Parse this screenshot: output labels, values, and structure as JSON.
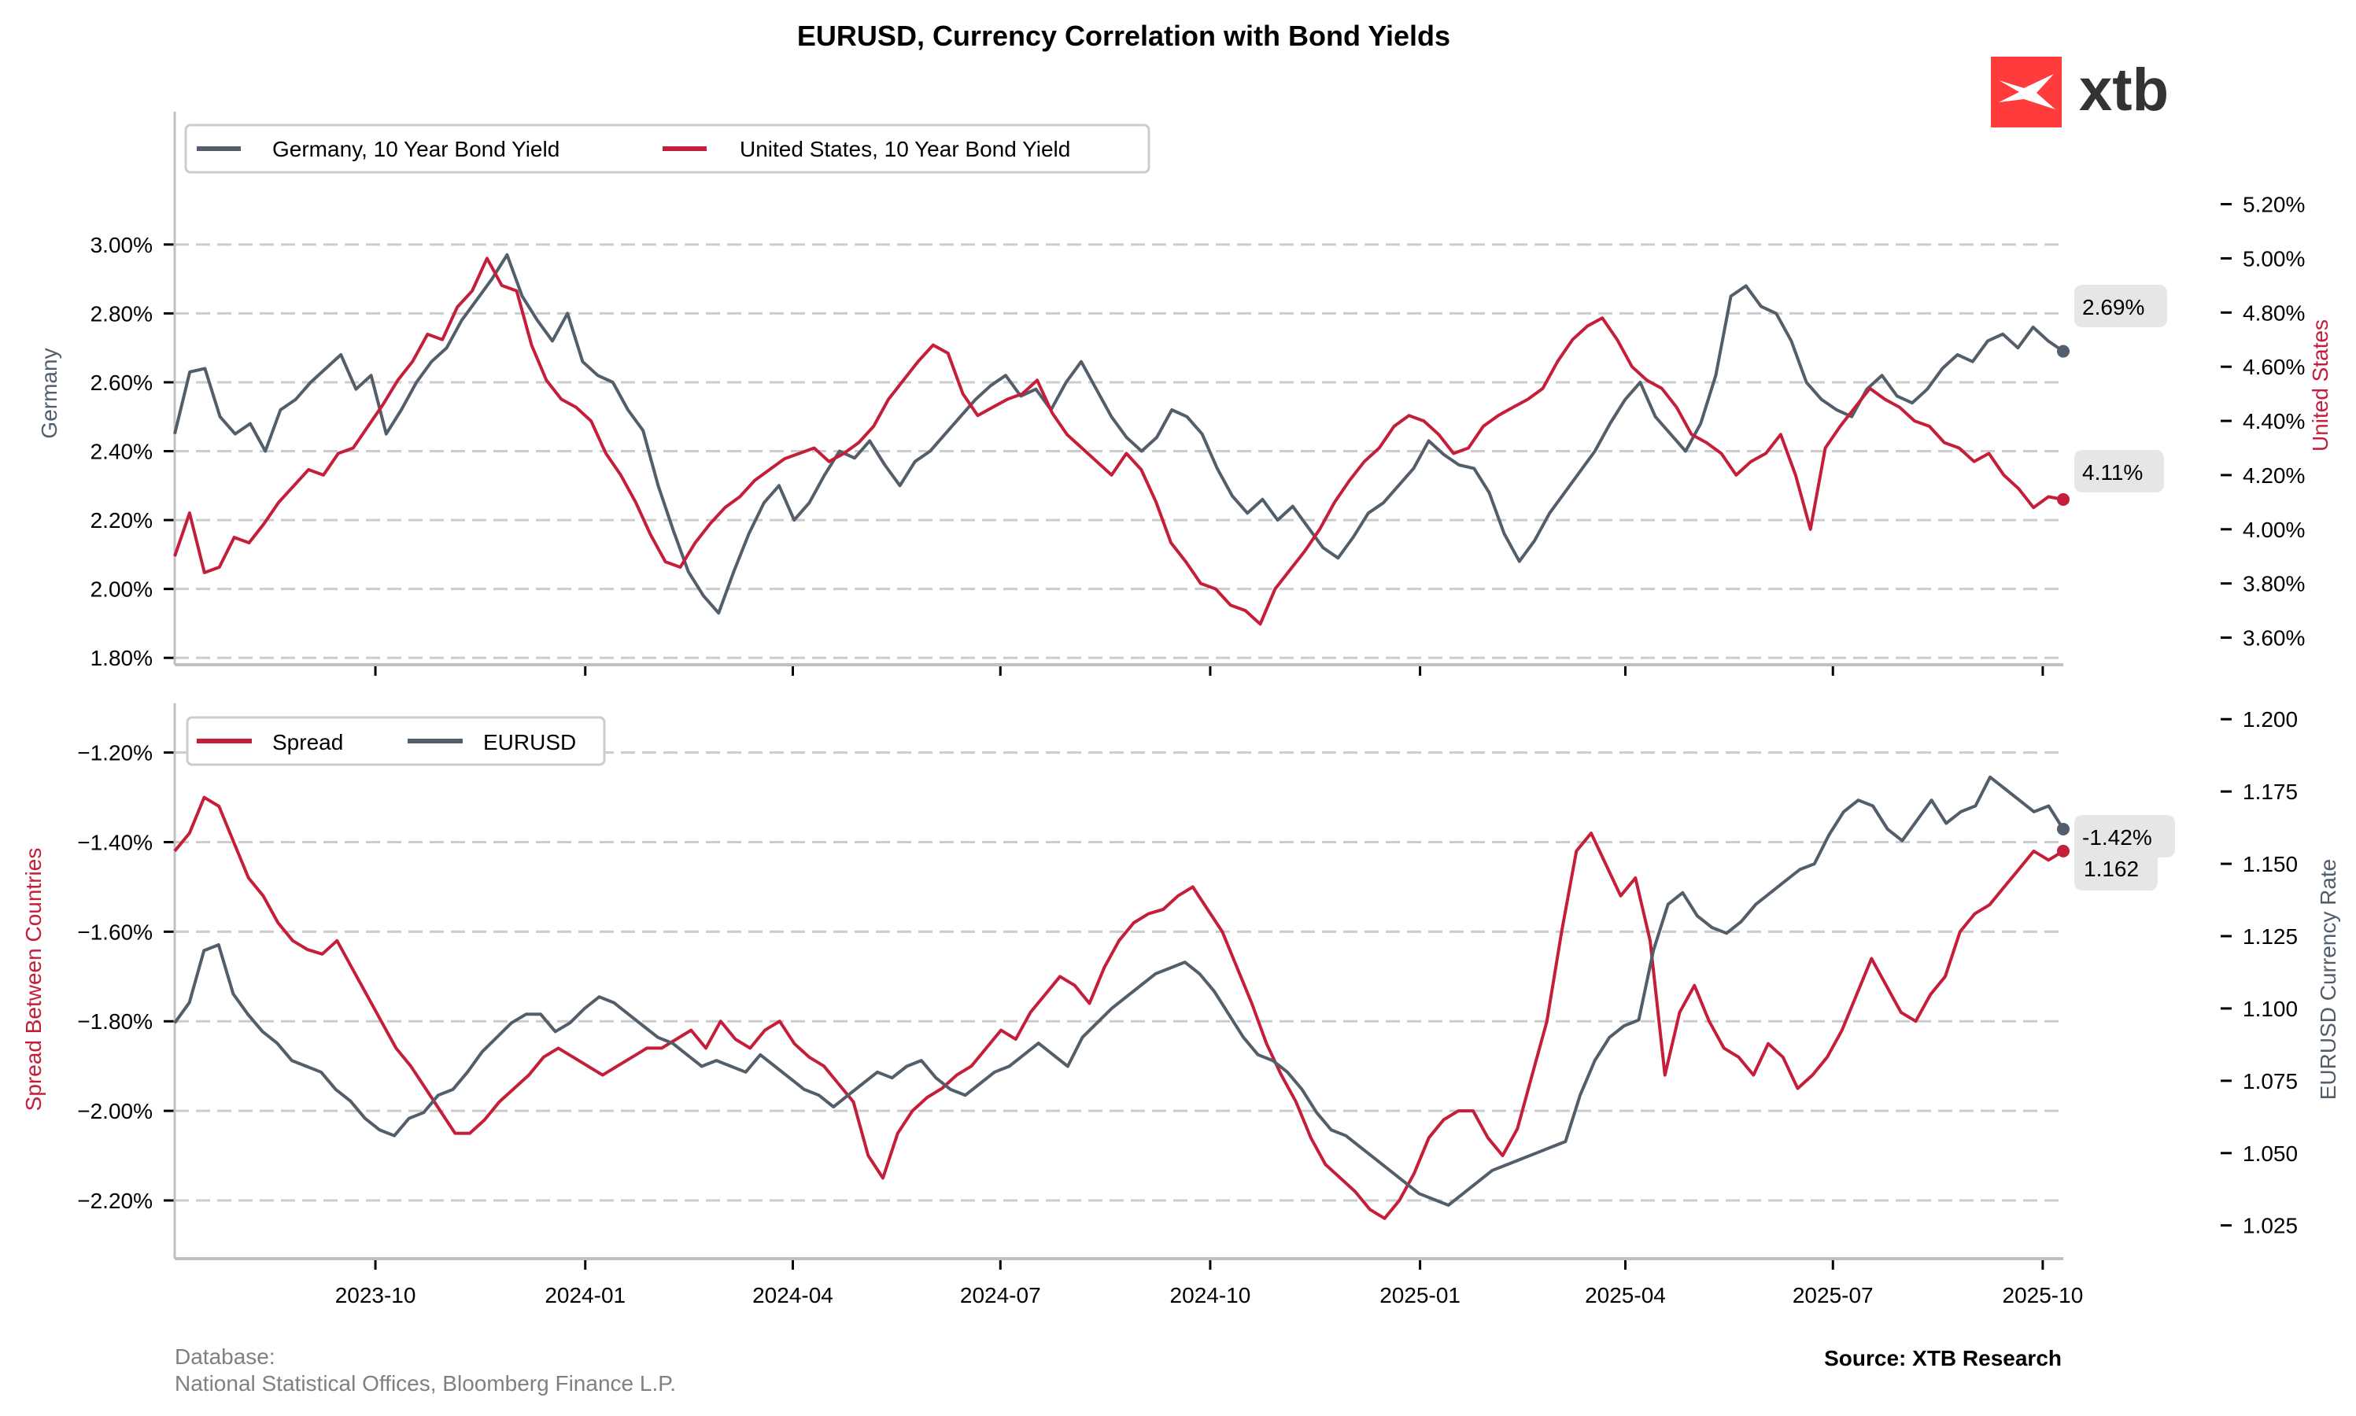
{
  "title": "EURUSD, Currency Correlation with Bond Yields",
  "logo": {
    "text": "xtb",
    "color": "#ff3b3b",
    "text_color": "#333333"
  },
  "colors": {
    "germany": "#525e69",
    "us": "#c41e3a",
    "grid": "#cccccc",
    "badge_bg": "#e6e6e6",
    "spine": "#c0c0c0"
  },
  "footer": {
    "database_label": "Database:",
    "database_value": "National Statistical Offices, Bloomberg Finance L.P.",
    "source": "Source: XTB Research"
  },
  "chart_data": [
    {
      "type": "line",
      "title": "",
      "x_start": "2023-07-05",
      "x_end": "2025-10-10",
      "x_tick_labels": [
        "2023-10",
        "2024-01",
        "2024-04",
        "2024-07",
        "2024-10",
        "2025-01",
        "2025-04",
        "2025-07",
        "2025-10"
      ],
      "left_axis": {
        "label": "Germany",
        "ylim": [
          1.78,
          3.18
        ],
        "ticks": [
          "1.80%",
          "2.00%",
          "2.20%",
          "2.40%",
          "2.60%",
          "2.80%",
          "3.00%"
        ],
        "tick_values": [
          1.8,
          2.0,
          2.2,
          2.4,
          2.6,
          2.8,
          3.0
        ]
      },
      "right_axis": {
        "label": "United States",
        "ylim": [
          3.5,
          5.28
        ],
        "ticks": [
          "3.60%",
          "3.80%",
          "4.00%",
          "4.20%",
          "4.40%",
          "4.60%",
          "4.80%",
          "5.00%",
          "5.20%"
        ],
        "tick_values": [
          3.6,
          3.8,
          4.0,
          4.2,
          4.4,
          4.6,
          4.8,
          5.0,
          5.2
        ]
      },
      "legend": [
        "Germany, 10 Year Bond Yield",
        "United States, 10 Year Bond Yield"
      ],
      "legend_position": "top-left",
      "grid": true,
      "series": [
        {
          "name": "Germany, 10 Year Bond Yield",
          "axis": "left",
          "last_label": "2.69%",
          "values": [
            2.45,
            2.63,
            2.64,
            2.5,
            2.45,
            2.48,
            2.4,
            2.52,
            2.55,
            2.6,
            2.64,
            2.68,
            2.58,
            2.62,
            2.45,
            2.52,
            2.6,
            2.66,
            2.7,
            2.78,
            2.84,
            2.9,
            2.97,
            2.85,
            2.78,
            2.72,
            2.8,
            2.66,
            2.62,
            2.6,
            2.52,
            2.46,
            2.3,
            2.17,
            2.05,
            1.98,
            1.93,
            2.05,
            2.16,
            2.25,
            2.3,
            2.2,
            2.25,
            2.33,
            2.4,
            2.38,
            2.43,
            2.36,
            2.3,
            2.37,
            2.4,
            2.45,
            2.5,
            2.55,
            2.59,
            2.62,
            2.56,
            2.58,
            2.52,
            2.6,
            2.66,
            2.58,
            2.5,
            2.44,
            2.4,
            2.44,
            2.52,
            2.5,
            2.45,
            2.35,
            2.27,
            2.22,
            2.26,
            2.2,
            2.24,
            2.18,
            2.12,
            2.09,
            2.15,
            2.22,
            2.25,
            2.3,
            2.35,
            2.43,
            2.39,
            2.36,
            2.35,
            2.28,
            2.16,
            2.08,
            2.14,
            2.22,
            2.28,
            2.34,
            2.4,
            2.48,
            2.55,
            2.6,
            2.5,
            2.45,
            2.4,
            2.48,
            2.62,
            2.85,
            2.88,
            2.82,
            2.8,
            2.72,
            2.6,
            2.55,
            2.52,
            2.5,
            2.58,
            2.62,
            2.56,
            2.54,
            2.58,
            2.64,
            2.68,
            2.66,
            2.72,
            2.74,
            2.7,
            2.76,
            2.72,
            2.69
          ]
        },
        {
          "name": "United States, 10 Year Bond Yield",
          "axis": "right",
          "last_label": "4.11%",
          "values": [
            3.9,
            4.06,
            3.84,
            3.86,
            3.97,
            3.95,
            4.02,
            4.1,
            4.16,
            4.22,
            4.2,
            4.28,
            4.3,
            4.38,
            4.46,
            4.55,
            4.62,
            4.72,
            4.7,
            4.82,
            4.88,
            5.0,
            4.9,
            4.88,
            4.68,
            4.55,
            4.48,
            4.45,
            4.4,
            4.28,
            4.2,
            4.1,
            3.98,
            3.88,
            3.86,
            3.95,
            4.02,
            4.08,
            4.12,
            4.18,
            4.22,
            4.26,
            4.28,
            4.3,
            4.25,
            4.28,
            4.32,
            4.38,
            4.48,
            4.55,
            4.62,
            4.68,
            4.65,
            4.5,
            4.42,
            4.45,
            4.48,
            4.5,
            4.55,
            4.43,
            4.35,
            4.3,
            4.25,
            4.2,
            4.28,
            4.22,
            4.1,
            3.95,
            3.88,
            3.8,
            3.78,
            3.72,
            3.7,
            3.65,
            3.78,
            3.85,
            3.92,
            4.0,
            4.1,
            4.18,
            4.25,
            4.3,
            4.38,
            4.42,
            4.4,
            4.35,
            4.28,
            4.3,
            4.38,
            4.42,
            4.45,
            4.48,
            4.52,
            4.62,
            4.7,
            4.75,
            4.78,
            4.7,
            4.6,
            4.55,
            4.52,
            4.45,
            4.35,
            4.32,
            4.28,
            4.2,
            4.25,
            4.28,
            4.35,
            4.2,
            4.0,
            4.3,
            4.38,
            4.45,
            4.52,
            4.48,
            4.45,
            4.4,
            4.38,
            4.32,
            4.3,
            4.25,
            4.28,
            4.2,
            4.15,
            4.08,
            4.12,
            4.11
          ]
        }
      ]
    },
    {
      "type": "line",
      "title": "",
      "x_start": "2023-07-05",
      "x_end": "2025-10-10",
      "x_tick_labels": [
        "2023-10",
        "2024-01",
        "2024-04",
        "2024-07",
        "2024-10",
        "2025-01",
        "2025-04",
        "2025-07",
        "2025-10"
      ],
      "left_axis": {
        "label": "Spread Between Countries",
        "ylim": [
          -2.33,
          -1.09
        ],
        "ticks": [
          "−2.20%",
          "−2.00%",
          "−1.80%",
          "−1.60%",
          "−1.40%",
          "−1.20%"
        ],
        "tick_values": [
          -2.2,
          -2.0,
          -1.8,
          -1.6,
          -1.4,
          -1.2
        ]
      },
      "right_axis": {
        "label": "EURUSD Currency Rate",
        "ylim": [
          1.0135,
          1.2055
        ],
        "ticks": [
          "1.025",
          "1.050",
          "1.075",
          "1.100",
          "1.125",
          "1.150",
          "1.175",
          "1.200"
        ],
        "tick_values": [
          1.025,
          1.05,
          1.075,
          1.1,
          1.125,
          1.15,
          1.175,
          1.2
        ]
      },
      "legend": [
        "Spread",
        "EURUSD"
      ],
      "legend_position": "top-left",
      "grid": true,
      "series": [
        {
          "name": "Spread",
          "axis": "left",
          "last_label": "-1.42%",
          "values": [
            -1.42,
            -1.38,
            -1.3,
            -1.32,
            -1.4,
            -1.48,
            -1.52,
            -1.58,
            -1.62,
            -1.64,
            -1.65,
            -1.62,
            -1.68,
            -1.74,
            -1.8,
            -1.86,
            -1.9,
            -1.95,
            -2.0,
            -2.05,
            -2.05,
            -2.02,
            -1.98,
            -1.95,
            -1.92,
            -1.88,
            -1.86,
            -1.88,
            -1.9,
            -1.92,
            -1.9,
            -1.88,
            -1.86,
            -1.86,
            -1.84,
            -1.82,
            -1.86,
            -1.8,
            -1.84,
            -1.86,
            -1.82,
            -1.8,
            -1.85,
            -1.88,
            -1.9,
            -1.94,
            -1.98,
            -2.1,
            -2.15,
            -2.05,
            -2.0,
            -1.97,
            -1.95,
            -1.92,
            -1.9,
            -1.86,
            -1.82,
            -1.84,
            -1.78,
            -1.74,
            -1.7,
            -1.72,
            -1.76,
            -1.68,
            -1.62,
            -1.58,
            -1.56,
            -1.55,
            -1.52,
            -1.5,
            -1.55,
            -1.6,
            -1.68,
            -1.76,
            -1.85,
            -1.92,
            -1.98,
            -2.06,
            -2.12,
            -2.15,
            -2.18,
            -2.22,
            -2.24,
            -2.2,
            -2.14,
            -2.06,
            -2.02,
            -2.0,
            -2.0,
            -2.06,
            -2.1,
            -2.04,
            -1.92,
            -1.8,
            -1.6,
            -1.42,
            -1.38,
            -1.45,
            -1.52,
            -1.48,
            -1.62,
            -1.92,
            -1.78,
            -1.72,
            -1.8,
            -1.86,
            -1.88,
            -1.92,
            -1.85,
            -1.88,
            -1.95,
            -1.92,
            -1.88,
            -1.82,
            -1.74,
            -1.66,
            -1.72,
            -1.78,
            -1.8,
            -1.74,
            -1.7,
            -1.6,
            -1.56,
            -1.54,
            -1.5,
            -1.46,
            -1.42,
            -1.44,
            -1.42
          ]
        },
        {
          "name": "EURUSD",
          "axis": "right",
          "last_label": "1.162",
          "values": [
            1.095,
            1.102,
            1.12,
            1.122,
            1.105,
            1.098,
            1.092,
            1.088,
            1.082,
            1.08,
            1.078,
            1.072,
            1.068,
            1.062,
            1.058,
            1.056,
            1.062,
            1.064,
            1.07,
            1.072,
            1.078,
            1.085,
            1.09,
            1.095,
            1.098,
            1.098,
            1.092,
            1.095,
            1.1,
            1.104,
            1.102,
            1.098,
            1.094,
            1.09,
            1.088,
            1.084,
            1.08,
            1.082,
            1.08,
            1.078,
            1.084,
            1.08,
            1.076,
            1.072,
            1.07,
            1.066,
            1.07,
            1.074,
            1.078,
            1.076,
            1.08,
            1.082,
            1.076,
            1.072,
            1.07,
            1.074,
            1.078,
            1.08,
            1.084,
            1.088,
            1.084,
            1.08,
            1.09,
            1.095,
            1.1,
            1.104,
            1.108,
            1.112,
            1.114,
            1.116,
            1.112,
            1.106,
            1.098,
            1.09,
            1.084,
            1.082,
            1.078,
            1.072,
            1.064,
            1.058,
            1.056,
            1.052,
            1.048,
            1.044,
            1.04,
            1.036,
            1.034,
            1.032,
            1.036,
            1.04,
            1.044,
            1.046,
            1.048,
            1.05,
            1.052,
            1.054,
            1.07,
            1.082,
            1.09,
            1.094,
            1.096,
            1.12,
            1.136,
            1.14,
            1.132,
            1.128,
            1.126,
            1.13,
            1.136,
            1.14,
            1.144,
            1.148,
            1.15,
            1.16,
            1.168,
            1.172,
            1.17,
            1.162,
            1.158,
            1.165,
            1.172,
            1.164,
            1.168,
            1.17,
            1.18,
            1.176,
            1.172,
            1.168,
            1.17,
            1.162
          ]
        }
      ]
    }
  ]
}
